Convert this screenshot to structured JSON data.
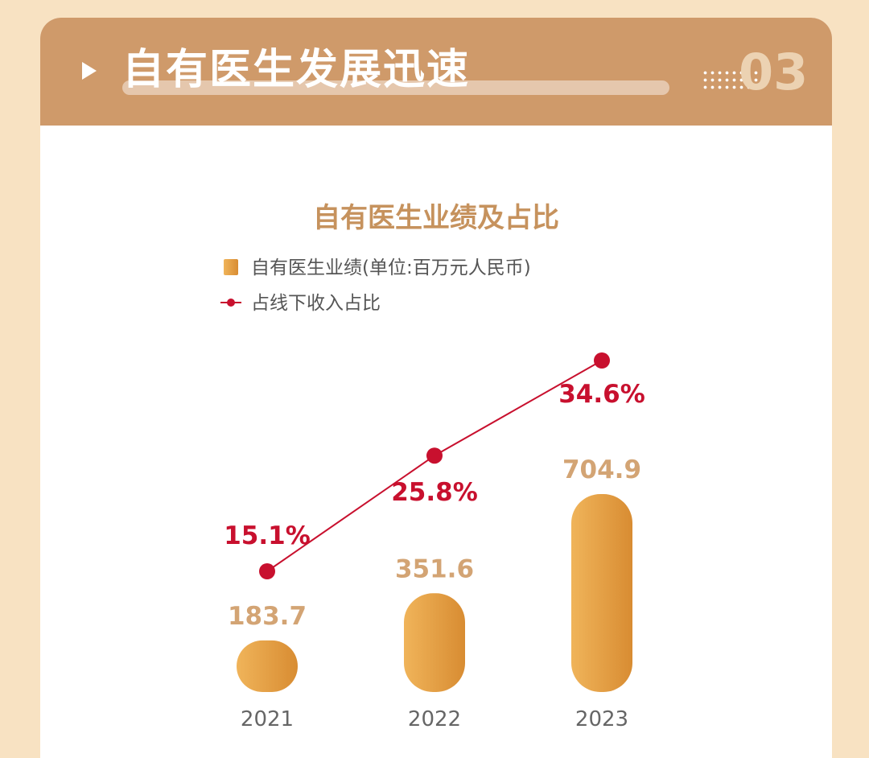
{
  "header": {
    "title": "自有医生发展迅速",
    "number": "03"
  },
  "colors": {
    "background": "#f8e2c2",
    "header": "#cf9a6a",
    "bar_light": "#f0b45a",
    "bar_dark": "#d88c32",
    "line": "#c8102e",
    "value_label": "#d3a474",
    "title": "#c6925d"
  },
  "chart_data": {
    "type": "bar",
    "title": "自有医生业绩及占比",
    "categories": [
      "2021",
      "2022",
      "2023"
    ],
    "series": [
      {
        "name": "自有医生业绩(单位:百万元人民币)",
        "type": "bar",
        "values": [
          183.7,
          351.6,
          704.9
        ],
        "labels": [
          "183.7",
          "351.6",
          "704.9"
        ]
      },
      {
        "name": "占线下收入占比",
        "type": "line",
        "values": [
          15.1,
          25.8,
          34.6
        ],
        "labels": [
          "15.1%",
          "25.8%",
          "34.6%"
        ]
      }
    ],
    "legend": "top-left",
    "grid": false
  }
}
